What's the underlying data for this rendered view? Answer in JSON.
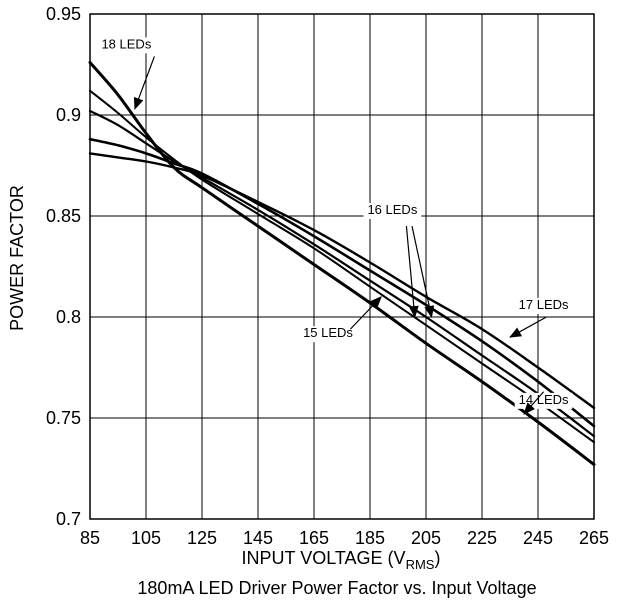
{
  "chart_data": {
    "type": "line",
    "title": "180mA LED Driver Power Factor vs. Input Voltage",
    "xlabel": "INPUT VOLTAGE (V",
    "xlabel_sub": "RMS",
    "xlabel_close": ")",
    "ylabel": "POWER FACTOR",
    "xlim": [
      85,
      265
    ],
    "ylim": [
      0.7,
      0.95
    ],
    "xticks": [
      85,
      105,
      125,
      145,
      165,
      185,
      205,
      225,
      245,
      265
    ],
    "yticks": [
      0.7,
      0.75,
      0.8,
      0.85,
      0.9,
      0.95
    ],
    "ytick_labels": [
      "0.7",
      "0.75",
      "0.8",
      "0.85",
      "0.9",
      "0.95"
    ],
    "grid": true,
    "series": [
      {
        "name": "18 LEDs",
        "x": [
          85,
          95,
          105,
          115,
          125,
          145,
          165,
          185,
          205,
          225,
          245,
          265
        ],
        "y": [
          0.926,
          0.91,
          0.891,
          0.874,
          0.864,
          0.845,
          0.826,
          0.807,
          0.787,
          0.768,
          0.748,
          0.727
        ]
      },
      {
        "name": "14 LEDs",
        "x": [
          85,
          95,
          105,
          115,
          125,
          145,
          165,
          185,
          205,
          225,
          245,
          265
        ],
        "y": [
          0.912,
          0.901,
          0.889,
          0.878,
          0.868,
          0.851,
          0.834,
          0.815,
          0.796,
          0.777,
          0.758,
          0.738
        ]
      },
      {
        "name": "15 LEDs",
        "x": [
          85,
          95,
          105,
          115,
          125,
          145,
          165,
          185,
          205,
          225,
          245,
          265
        ],
        "y": [
          0.902,
          0.895,
          0.886,
          0.877,
          0.869,
          0.853,
          0.836,
          0.818,
          0.8,
          0.781,
          0.762,
          0.741
        ]
      },
      {
        "name": "16 LEDs",
        "x": [
          85,
          95,
          105,
          115,
          125,
          145,
          165,
          185,
          205,
          225,
          245,
          265
        ],
        "y": [
          0.888,
          0.885,
          0.881,
          0.876,
          0.871,
          0.856,
          0.84,
          0.823,
          0.806,
          0.788,
          0.768,
          0.746
        ]
      },
      {
        "name": "17 LEDs",
        "x": [
          85,
          95,
          105,
          115,
          125,
          145,
          165,
          185,
          205,
          225,
          245,
          265
        ],
        "y": [
          0.881,
          0.879,
          0.877,
          0.874,
          0.87,
          0.857,
          0.843,
          0.827,
          0.81,
          0.794,
          0.775,
          0.755
        ]
      }
    ],
    "annotations": [
      {
        "text": "18 LEDs",
        "series": "18 LEDs",
        "text_x": 98,
        "text_y": 0.933,
        "arrow_to": [
          [
            108,
            0.929,
            101,
            0.903
          ]
        ]
      },
      {
        "text": "16 LEDs",
        "series": "16 LEDs",
        "text_x": 193,
        "text_y": 0.851,
        "arrow_to": [
          [
            200,
            0.845,
            207,
            0.8
          ],
          [
            198,
            0.845,
            201,
            0.8
          ]
        ]
      },
      {
        "text": "17 LEDs",
        "series": "17 LEDs",
        "text_x": 247,
        "text_y": 0.804,
        "arrow_to": [
          [
            248,
            0.8,
            235,
            0.79
          ]
        ]
      },
      {
        "text": "15 LEDs",
        "series": "15 LEDs",
        "text_x": 170,
        "text_y": 0.79,
        "arrow_to": [
          [
            178,
            0.794,
            189,
            0.81
          ]
        ]
      },
      {
        "text": "14 LEDs",
        "series": "14 LEDs",
        "text_x": 247,
        "text_y": 0.757,
        "arrow_to": [
          [
            247,
            0.763,
            240,
            0.752
          ]
        ]
      }
    ]
  }
}
